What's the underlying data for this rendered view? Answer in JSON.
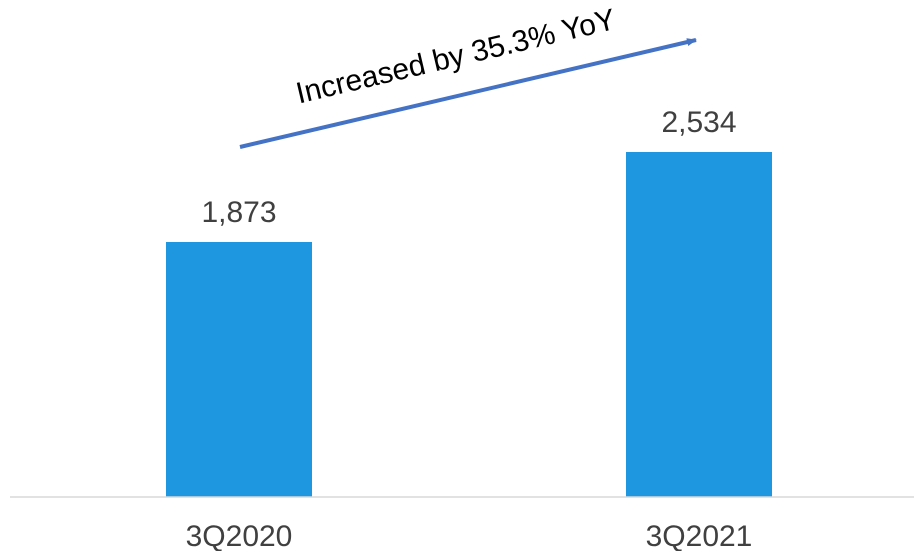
{
  "chart_data": {
    "type": "bar",
    "title": "",
    "xlabel": "",
    "ylabel": "",
    "categories": [
      "3Q2020",
      "3Q2021"
    ],
    "values": [
      1873,
      2534
    ],
    "value_labels": [
      "1,873",
      "2,534"
    ],
    "ylim": [
      0,
      3000
    ],
    "grid": false,
    "legend": "none",
    "annotation": "Increased by 35.3% YoY",
    "colors": {
      "bar": "#1f96e0",
      "arrow": "#4472c4",
      "axis": "#d9d9d9"
    }
  }
}
